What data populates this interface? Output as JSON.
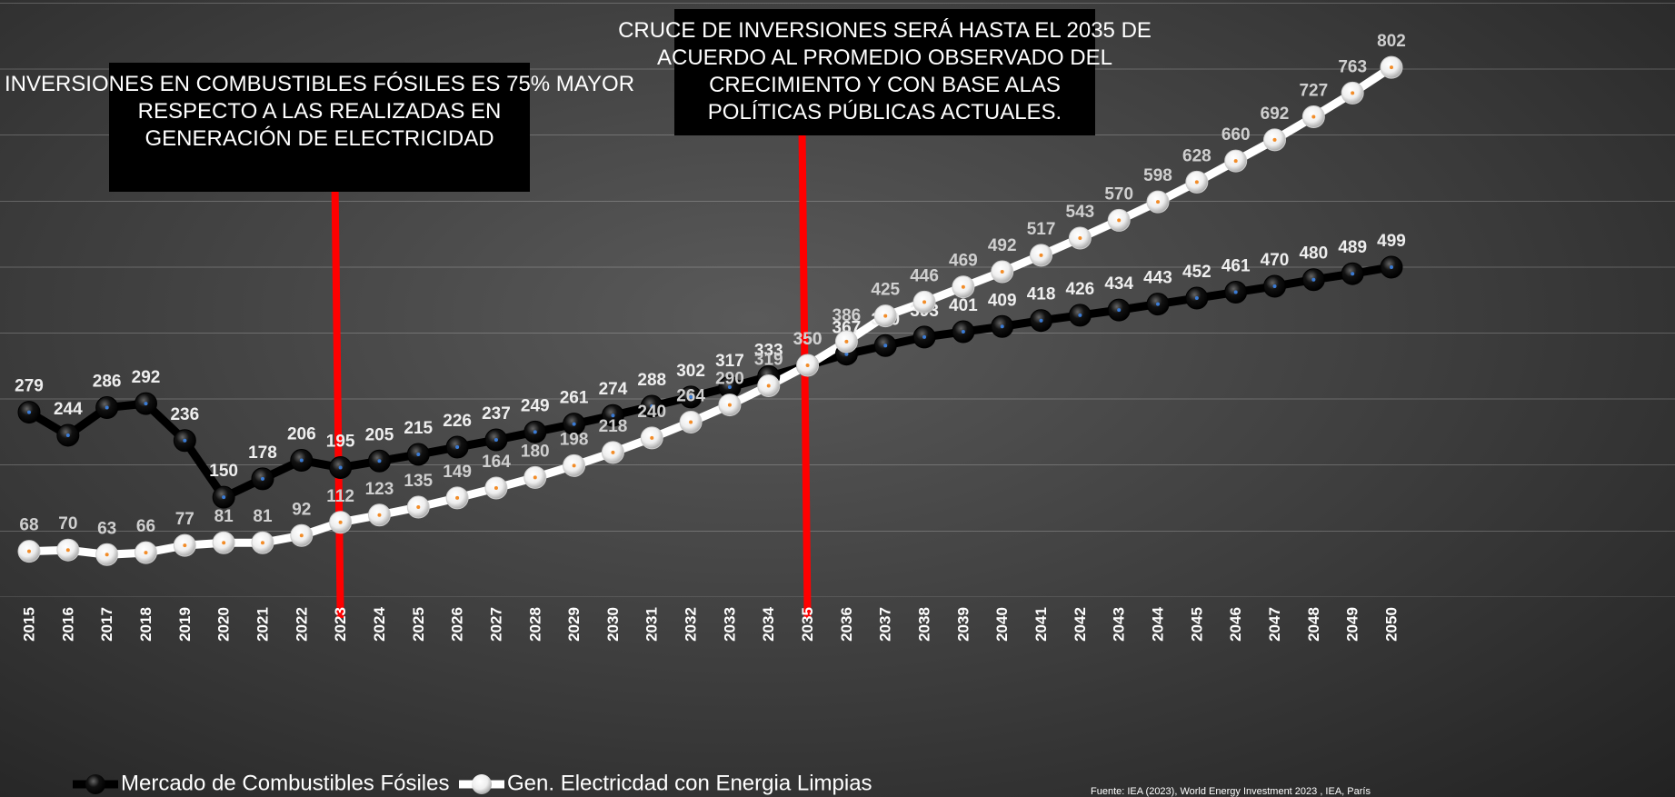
{
  "chart_data": {
    "type": "line",
    "categories": [
      "2015",
      "2016",
      "2017",
      "2018",
      "2019",
      "2020",
      "2021",
      "2022",
      "2023",
      "2024",
      "2025",
      "2026",
      "2027",
      "2028",
      "2029",
      "2030",
      "2031",
      "2032",
      "2033",
      "2034",
      "2035",
      "2036",
      "2037",
      "2038",
      "2039",
      "2040",
      "2041",
      "2042",
      "2043",
      "2044",
      "2045",
      "2046",
      "2047",
      "2048",
      "2049",
      "2050"
    ],
    "series": [
      {
        "name": "Mercado de Combustibles Fósiles",
        "color": "#000000",
        "values": [
          279,
          244,
          286,
          292,
          236,
          150,
          178,
          206,
          195,
          205,
          215,
          226,
          237,
          249,
          261,
          274,
          288,
          302,
          317,
          333,
          350,
          367,
          380,
          393,
          401,
          409,
          418,
          426,
          434,
          443,
          452,
          461,
          470,
          480,
          489,
          499
        ]
      },
      {
        "name": "Gen. Electricdad con Energia Limpias",
        "color": "#ffffff",
        "values": [
          68,
          70,
          63,
          66,
          77,
          81,
          81,
          92,
          112,
          123,
          135,
          149,
          164,
          180,
          198,
          218,
          240,
          264,
          290,
          319,
          350,
          386,
          425,
          446,
          469,
          492,
          517,
          543,
          570,
          598,
          628,
          660,
          692,
          727,
          763,
          802
        ]
      }
    ],
    "ylim": [
      0,
      900
    ],
    "annotations": [
      {
        "text": "INVERSIONES EN COMBUSTIBLES FÓSILES ES 75% MAYOR RESPECTO A LAS REALIZADAS EN GENERACIÓN DE ELECTRICIDAD",
        "x": "2023"
      },
      {
        "text": "CRUCE DE INVERSIONES SERÁ HASTA EL 2035 DE ACUERDO AL PROMEDIO OBSERVADO DEL CRECIMIENTO Y CON BASE ALAS POLÍTICAS PÚBLICAS ACTUALES.",
        "x": "2035"
      }
    ],
    "source": "Fuente: IEA (2023), World Energy Investment 2023 , IEA, París"
  }
}
